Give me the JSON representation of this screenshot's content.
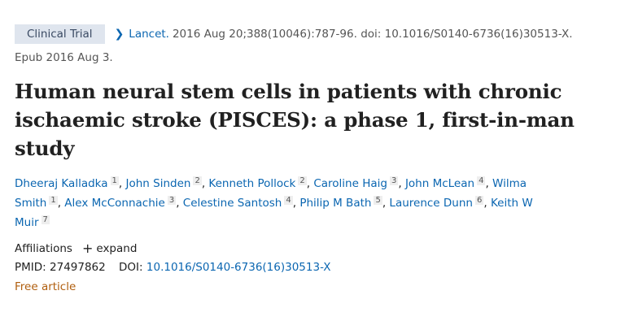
{
  "badge": "Clinical Trial",
  "citation": {
    "journal": "Lancet.",
    "details": "2016 Aug 20;388(10046):787-96. doi: 10.1016/S0140-6736(16)30513-X.",
    "epub": "Epub 2016 Aug 3."
  },
  "title": "Human neural stem cells in patients with chronic ischaemic stroke (PISCES): a phase 1, first-in-man study",
  "authors": [
    {
      "name": "Dheeraj Kalladka",
      "aff": "1"
    },
    {
      "name": "John Sinden",
      "aff": "2"
    },
    {
      "name": "Kenneth Pollock",
      "aff": "2"
    },
    {
      "name": "Caroline Haig",
      "aff": "3"
    },
    {
      "name": "John McLean",
      "aff": "4"
    },
    {
      "name": "Wilma Smith",
      "aff": "1"
    },
    {
      "name": "Alex McConnachie",
      "aff": "3"
    },
    {
      "name": "Celestine Santosh",
      "aff": "4"
    },
    {
      "name": "Philip M Bath",
      "aff": "5"
    },
    {
      "name": "Laurence Dunn",
      "aff": "6"
    },
    {
      "name": "Keith W Muir",
      "aff": "7"
    }
  ],
  "affiliations": {
    "label": "Affiliations",
    "expand": "expand"
  },
  "ids": {
    "pmid_label": "PMID:",
    "pmid": "27497862",
    "doi_label": "DOI:",
    "doi": "10.1016/S0140-6736(16)30513-X"
  },
  "free": "Free article",
  "colors": {
    "link": "#0b66b1",
    "badge_bg": "#dfe5ee",
    "free": "#b05e0e"
  },
  "icons": {
    "chevron": "chevron-right-icon",
    "expand": "plus-icon"
  }
}
